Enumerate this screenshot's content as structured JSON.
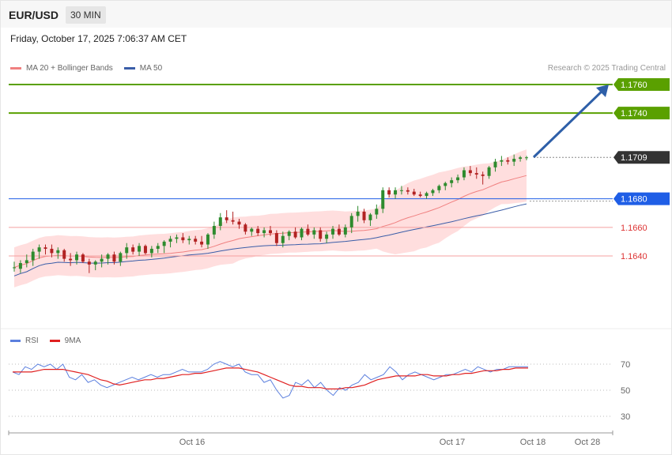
{
  "header": {
    "pair": "EUR/USD",
    "timeframe": "30 MIN",
    "datetime": "Friday, October 17, 2025 7:06:37 AM CET"
  },
  "legend": {
    "main": [
      {
        "label": "MA 20 + Bollinger Bands",
        "color": "#f08080"
      },
      {
        "label": "MA 50",
        "color": "#3a5da8"
      }
    ],
    "rsi": [
      {
        "label": "RSI",
        "color": "#5b7fde"
      },
      {
        "label": "9MA",
        "color": "#e02020"
      }
    ]
  },
  "credit": "Research © 2025 Trading Central",
  "colors": {
    "bull": "#2e8b2e",
    "bear": "#b22222",
    "target": "#5aa000",
    "pivot": "#1f5ee6",
    "support": "#dd3333",
    "last": "#333333",
    "arrow": "#2e5fa8",
    "band": "#ffd6d6"
  },
  "chart_data": [
    {
      "type": "candlestick",
      "price_levels": [
        {
          "value": "1.1760",
          "kind": "target"
        },
        {
          "value": "1.1740",
          "kind": "target"
        },
        {
          "value": "1.1709",
          "kind": "last"
        },
        {
          "value": "1.1680",
          "kind": "pivot"
        },
        {
          "value": "1.1660",
          "kind": "support"
        },
        {
          "value": "1.1640",
          "kind": "support"
        }
      ],
      "x_ticks": [
        "Oct 16",
        "Oct 17",
        "Oct 18",
        "Oct 28"
      ],
      "candles": [
        [
          1.1632,
          1.1636,
          1.1629,
          1.1632
        ],
        [
          1.1631,
          1.1637,
          1.1628,
          1.1635
        ],
        [
          1.1635,
          1.1641,
          1.1632,
          1.1637
        ],
        [
          1.1637,
          1.1645,
          1.1633,
          1.1643
        ],
        [
          1.1643,
          1.1648,
          1.1638,
          1.1646
        ],
        [
          1.1646,
          1.1648,
          1.1641,
          1.1645
        ],
        [
          1.1645,
          1.1648,
          1.1639,
          1.1642
        ],
        [
          1.1642,
          1.1646,
          1.1638,
          1.1644
        ],
        [
          1.1644,
          1.1645,
          1.1636,
          1.1638
        ],
        [
          1.1638,
          1.1642,
          1.1633,
          1.1637
        ],
        [
          1.1637,
          1.1643,
          1.1634,
          1.1641
        ],
        [
          1.1641,
          1.1642,
          1.1635,
          1.1636
        ],
        [
          1.1636,
          1.1638,
          1.1628,
          1.1634
        ],
        [
          1.1634,
          1.1637,
          1.163,
          1.1636
        ],
        [
          1.1636,
          1.1641,
          1.1632,
          1.1638
        ],
        [
          1.1638,
          1.1642,
          1.1634,
          1.1641
        ],
        [
          1.1641,
          1.1643,
          1.1634,
          1.1636
        ],
        [
          1.1636,
          1.1643,
          1.1633,
          1.1642
        ],
        [
          1.1642,
          1.1649,
          1.1638,
          1.1646
        ],
        [
          1.1646,
          1.1648,
          1.1641,
          1.1643
        ],
        [
          1.1643,
          1.1649,
          1.164,
          1.1647
        ],
        [
          1.1647,
          1.1648,
          1.1641,
          1.1642
        ],
        [
          1.1642,
          1.1647,
          1.1639,
          1.1645
        ],
        [
          1.1645,
          1.1649,
          1.1642,
          1.1647
        ],
        [
          1.1647,
          1.1651,
          1.1642,
          1.165
        ],
        [
          1.165,
          1.1654,
          1.1646,
          1.1652
        ],
        [
          1.1652,
          1.1655,
          1.1649,
          1.1653
        ],
        [
          1.1653,
          1.1656,
          1.1649,
          1.1651
        ],
        [
          1.1651,
          1.1654,
          1.1648,
          1.1652
        ],
        [
          1.1652,
          1.1654,
          1.1648,
          1.165
        ],
        [
          1.165,
          1.1654,
          1.1646,
          1.1648
        ],
        [
          1.1648,
          1.1656,
          1.1645,
          1.1655
        ],
        [
          1.1655,
          1.1664,
          1.1652,
          1.1661
        ],
        [
          1.1661,
          1.167,
          1.1658,
          1.1667
        ],
        [
          1.1667,
          1.1672,
          1.1663,
          1.1665
        ],
        [
          1.1665,
          1.1671,
          1.1662,
          1.1664
        ],
        [
          1.1664,
          1.1666,
          1.1659,
          1.1662
        ],
        [
          1.1662,
          1.1663,
          1.1655,
          1.1657
        ],
        [
          1.1657,
          1.166,
          1.1654,
          1.1659
        ],
        [
          1.1659,
          1.1661,
          1.1654,
          1.1656
        ],
        [
          1.1656,
          1.166,
          1.1653,
          1.1658
        ],
        [
          1.1658,
          1.1661,
          1.1654,
          1.1656
        ],
        [
          1.1656,
          1.1658,
          1.1647,
          1.1649
        ],
        [
          1.1649,
          1.1657,
          1.1646,
          1.1654
        ],
        [
          1.1654,
          1.1658,
          1.1651,
          1.1657
        ],
        [
          1.1657,
          1.166,
          1.1652,
          1.1653
        ],
        [
          1.1653,
          1.166,
          1.1651,
          1.1659
        ],
        [
          1.1659,
          1.1662,
          1.1654,
          1.1655
        ],
        [
          1.1655,
          1.166,
          1.1652,
          1.1658
        ],
        [
          1.1658,
          1.166,
          1.165,
          1.1652
        ],
        [
          1.1652,
          1.1657,
          1.1649,
          1.1655
        ],
        [
          1.1655,
          1.1661,
          1.1652,
          1.1659
        ],
        [
          1.1659,
          1.1662,
          1.1654,
          1.1655
        ],
        [
          1.1655,
          1.1662,
          1.1653,
          1.166
        ],
        [
          1.166,
          1.167,
          1.1656,
          1.1668
        ],
        [
          1.1668,
          1.1675,
          1.1664,
          1.1671
        ],
        [
          1.1671,
          1.1673,
          1.1663,
          1.1665
        ],
        [
          1.1665,
          1.167,
          1.1661,
          1.1669
        ],
        [
          1.1669,
          1.1676,
          1.1666,
          1.1673
        ],
        [
          1.1673,
          1.1688,
          1.167,
          1.1686
        ],
        [
          1.1686,
          1.1688,
          1.1681,
          1.1683
        ],
        [
          1.1683,
          1.1688,
          1.168,
          1.1686
        ],
        [
          1.1686,
          1.1689,
          1.1683,
          1.1686
        ],
        [
          1.1686,
          1.1688,
          1.1683,
          1.1685
        ],
        [
          1.1685,
          1.1687,
          1.1682,
          1.1683
        ],
        [
          1.1683,
          1.1685,
          1.1681,
          1.1682
        ],
        [
          1.1682,
          1.1685,
          1.168,
          1.1684
        ],
        [
          1.1684,
          1.1687,
          1.1682,
          1.1686
        ],
        [
          1.1686,
          1.169,
          1.1684,
          1.1689
        ],
        [
          1.1689,
          1.1692,
          1.1686,
          1.1691
        ],
        [
          1.1691,
          1.1695,
          1.1688,
          1.1693
        ],
        [
          1.1693,
          1.1697,
          1.1691,
          1.1695
        ],
        [
          1.1695,
          1.1702,
          1.1693,
          1.17
        ],
        [
          1.17,
          1.1703,
          1.1696,
          1.1698
        ],
        [
          1.1698,
          1.1702,
          1.1694,
          1.1697
        ],
        [
          1.1697,
          1.1699,
          1.169,
          1.1696
        ],
        [
          1.1696,
          1.1703,
          1.1694,
          1.1702
        ],
        [
          1.1702,
          1.1708,
          1.1699,
          1.1706
        ],
        [
          1.1706,
          1.171,
          1.1703,
          1.1707
        ],
        [
          1.1707,
          1.1709,
          1.1704,
          1.1706
        ],
        [
          1.1706,
          1.1711,
          1.1703,
          1.1708
        ],
        [
          1.1708,
          1.171,
          1.1706,
          1.1709
        ],
        [
          1.1709,
          1.171,
          1.1707,
          1.1709
        ]
      ]
    },
    {
      "type": "line",
      "series": [
        {
          "name": "RSI"
        },
        {
          "name": "9MA"
        }
      ],
      "y_ticks": [
        "70",
        "50",
        "30"
      ],
      "rsi": [
        64,
        62,
        68,
        66,
        70,
        68,
        70,
        66,
        70,
        60,
        58,
        62,
        56,
        58,
        54,
        52,
        54,
        56,
        58,
        60,
        58,
        60,
        62,
        60,
        62,
        62,
        64,
        66,
        64,
        64,
        64,
        66,
        70,
        72,
        70,
        68,
        70,
        64,
        62,
        62,
        56,
        58,
        50,
        44,
        46,
        56,
        54,
        58,
        52,
        56,
        50,
        46,
        52,
        50,
        54,
        56,
        62,
        58,
        60,
        62,
        68,
        64,
        58,
        62,
        64,
        62,
        60,
        58,
        60,
        62,
        62,
        64,
        66,
        64,
        68,
        66,
        64,
        66,
        66,
        68,
        68,
        68,
        68
      ],
      "ma9": [
        64,
        64,
        64,
        64,
        65,
        66,
        66,
        66,
        66,
        65,
        64,
        63,
        62,
        60,
        58,
        57,
        55,
        54,
        55,
        56,
        57,
        58,
        58,
        59,
        59,
        60,
        61,
        62,
        62,
        63,
        63,
        64,
        65,
        66,
        67,
        67,
        67,
        66,
        65,
        64,
        62,
        60,
        58,
        56,
        54,
        53,
        53,
        52,
        52,
        52,
        51,
        51,
        51,
        52,
        52,
        53,
        54,
        56,
        58,
        59,
        60,
        61,
        61,
        61,
        61,
        62,
        62,
        61,
        61,
        61,
        62,
        62,
        63,
        63,
        64,
        65,
        65,
        65,
        66,
        66,
        67,
        67,
        67
      ]
    }
  ]
}
